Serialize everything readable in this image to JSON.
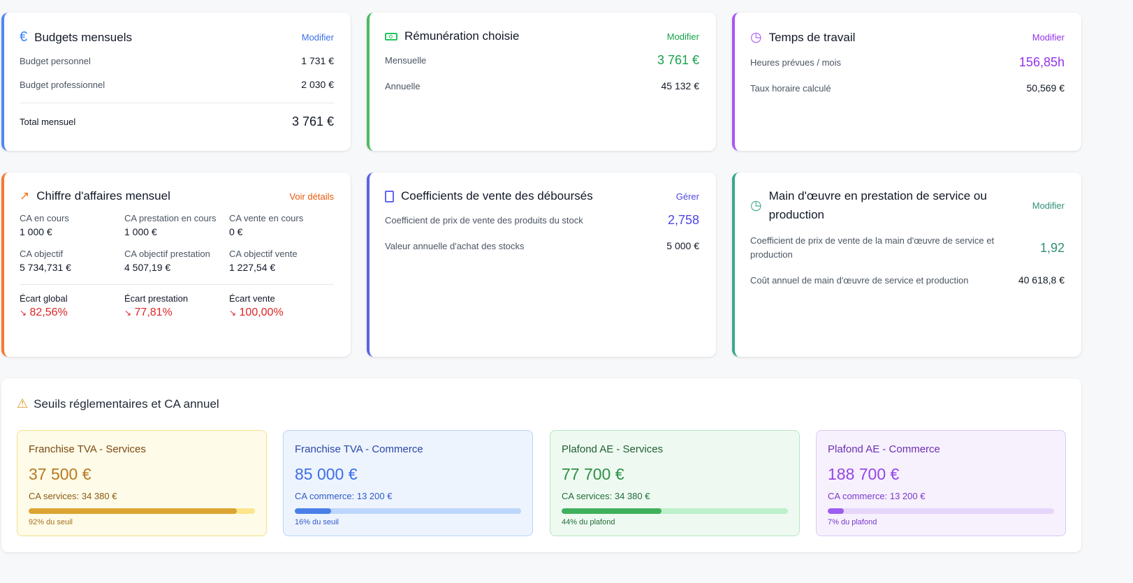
{
  "budgets": {
    "title": "Budgets mensuels",
    "action": "Modifier",
    "rows": [
      {
        "label": "Budget personnel",
        "value": "1 731 €"
      },
      {
        "label": "Budget professionnel",
        "value": "2 030 €"
      }
    ],
    "total_label": "Total mensuel",
    "total_value": "3 761 €",
    "color": "#3b82f6"
  },
  "remuneration": {
    "title": "Rémunération choisie",
    "action": "Modifier",
    "rows": [
      {
        "label": "Mensuelle",
        "value": "3 761 €"
      },
      {
        "label": "Annuelle",
        "value": "45 132 €"
      }
    ],
    "color": "#22c55e"
  },
  "temps": {
    "title": "Temps de travail",
    "action": "Modifier",
    "rows": [
      {
        "label": "Heures prévues / mois",
        "value": "156,85h"
      },
      {
        "label": "Taux horaire calculé",
        "value": "50,569 €"
      }
    ],
    "color": "#a855f7"
  },
  "ca": {
    "title": "Chiffre d'affaires mensuel",
    "action": "Voir détails",
    "items": [
      {
        "label": "CA en cours",
        "value": "1 000 €"
      },
      {
        "label": "CA prestation en cours",
        "value": "1 000 €"
      },
      {
        "label": "CA vente en cours",
        "value": "0 €"
      },
      {
        "label": "CA objectif",
        "value": "5 734,731 €"
      },
      {
        "label": "CA objectif prestation",
        "value": "4 507,19 €"
      },
      {
        "label": "CA objectif vente",
        "value": "1 227,54 €"
      }
    ],
    "ecarts": [
      {
        "label": "Écart global",
        "value": "82,56%"
      },
      {
        "label": "Écart prestation",
        "value": "77,81%"
      },
      {
        "label": "Écart vente",
        "value": "100,00%"
      }
    ],
    "color": "#f97316"
  },
  "coef": {
    "title": "Coefficients de vente des déboursés",
    "action": "Gérer",
    "rows": [
      {
        "label": "Coefficient de prix de vente des produits du stock",
        "value": "2,758"
      },
      {
        "label": "Valeur annuelle d'achat des stocks",
        "value": "5 000 €"
      }
    ],
    "color": "#6366f1"
  },
  "mo": {
    "title": "Main d'œuvre en prestation de service ou production",
    "action": "Modifier",
    "rows": [
      {
        "label": "Coefficient de prix de vente de la main d'œuvre de service et production",
        "value": "1,92"
      },
      {
        "label": "Coût annuel de main d'œuvre de service et production",
        "value": "40 618,8 €"
      }
    ],
    "color": "#3aa88c"
  },
  "seuils": {
    "title": "Seuils réglementaires et CA annuel",
    "tiles": [
      {
        "name": "Franchise TVA - Services",
        "amount": "37 500 €",
        "ca": "CA services: 34 380 €",
        "percent": 92,
        "pct_label": "92% du seuil"
      },
      {
        "name": "Franchise TVA - Commerce",
        "amount": "85 000 €",
        "ca": "CA commerce: 13 200 €",
        "percent": 16,
        "pct_label": "16% du seuil"
      },
      {
        "name": "Plafond AE - Services",
        "amount": "77 700 €",
        "ca": "CA services: 34 380 €",
        "percent": 44,
        "pct_label": "44% du plafond"
      },
      {
        "name": "Plafond AE - Commerce",
        "amount": "188 700 €",
        "ca": "CA commerce: 13 200 €",
        "percent": 7,
        "pct_label": "7% du plafond"
      }
    ]
  }
}
